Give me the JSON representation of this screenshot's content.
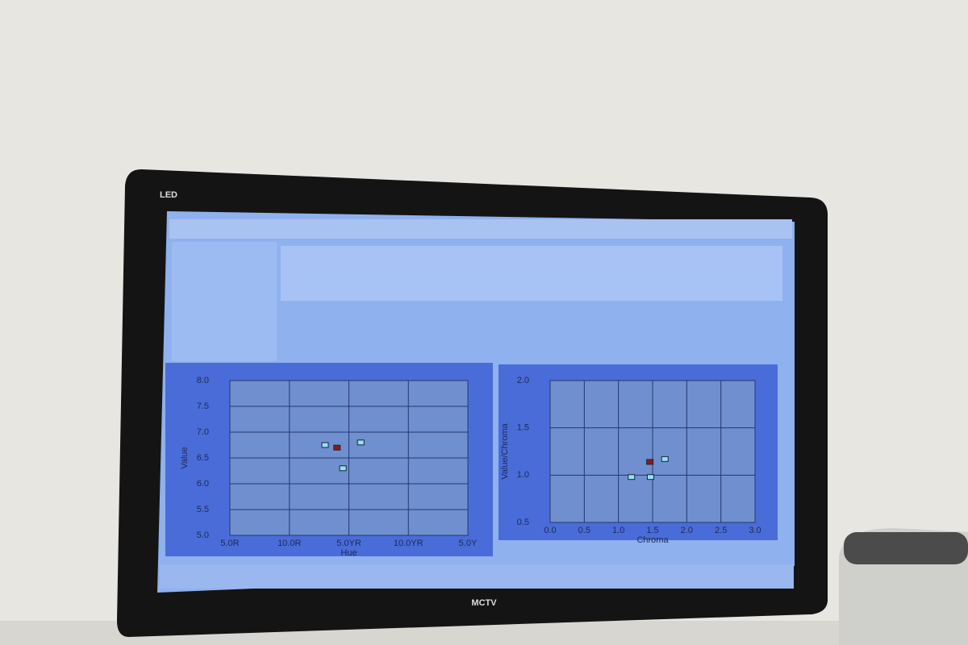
{
  "monitor": {
    "brand": "LED",
    "model": "MCTV"
  },
  "chart_data": [
    {
      "type": "scatter",
      "x_label": "Hue",
      "y_label": "Value",
      "x": [
        1.6,
        1.8,
        2.2,
        1.9
      ],
      "values": [
        6.75,
        6.7,
        6.8,
        6.3
      ],
      "colors": [
        "#8fe3f5",
        "#8b1a1a",
        "#8fe3f5",
        "#8fe3f5"
      ],
      "xlim": [
        0,
        4
      ],
      "ylim": [
        5,
        8
      ],
      "grid": true,
      "xticks": [
        {
          "value": 0,
          "label": "5.0R"
        },
        {
          "value": 1,
          "label": "10.0R"
        },
        {
          "value": 2,
          "label": "5.0YR"
        },
        {
          "value": 3,
          "label": "10.0YR"
        },
        {
          "value": 4,
          "label": "5.0Y"
        }
      ],
      "yticks": [
        {
          "value": 5,
          "label": "5.0"
        },
        5.5,
        {
          "value": 6,
          "label": "6.0"
        },
        6.5,
        {
          "value": 7,
          "label": "7.0"
        },
        7.5,
        {
          "value": 8,
          "label": "8.0"
        }
      ]
    },
    {
      "type": "scatter",
      "x_label": "Chroma",
      "y_label": "Value/Chroma",
      "x": [
        1.46,
        1.68,
        1.19,
        1.47
      ],
      "values": [
        1.14,
        1.17,
        0.98,
        0.98
      ],
      "colors": [
        "#8b1a1a",
        "#8fe3f5",
        "#8fe3f5",
        "#8fe3f5"
      ],
      "xlim": [
        0,
        3
      ],
      "ylim": [
        0.5,
        2
      ],
      "grid": true,
      "xticks": [
        {
          "value": 0,
          "label": "0.0"
        },
        0.5,
        {
          "value": 1,
          "label": "1.0"
        },
        1.5,
        {
          "value": 2,
          "label": "2.0"
        },
        2.5,
        {
          "value": 3,
          "label": "3.0"
        }
      ],
      "yticks": [
        0.5,
        {
          "value": 1,
          "label": "1.0"
        },
        1.5,
        {
          "value": 2,
          "label": "2.0"
        }
      ]
    }
  ]
}
